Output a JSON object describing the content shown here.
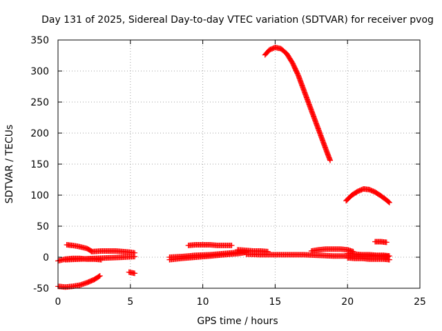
{
  "chart_data": {
    "type": "scatter",
    "title": "Day 131 of 2025, Sidereal Day-to-day VTEC variation (SDTVAR) for receiver pvog",
    "xlabel": "GPS time / hours",
    "ylabel": "SDTVAR / TECUs",
    "xlim": [
      0,
      25
    ],
    "ylim": [
      -50,
      350
    ],
    "xticks": [
      0,
      5,
      10,
      15,
      20,
      25
    ],
    "yticks": [
      -50,
      0,
      50,
      100,
      150,
      200,
      250,
      300,
      350
    ],
    "xtick_labels": [
      "0",
      "5",
      "10",
      "15",
      "20",
      "25"
    ],
    "ytick_labels": [
      "-50",
      "0",
      "50",
      "100",
      "150",
      "200",
      "250",
      "300",
      "350"
    ],
    "grid": true,
    "marker": "+",
    "color": "#ff0000",
    "series": [
      {
        "name": "seg-01",
        "x": [
          0.0,
          0.5,
          1.0,
          1.5,
          2.0,
          2.5,
          2.9
        ],
        "y": [
          -47,
          -48,
          -47,
          -45,
          -41,
          -36,
          -30
        ]
      },
      {
        "name": "seg-02",
        "x": [
          0.0,
          0.5,
          1.0,
          1.5,
          2.0,
          2.5,
          3.0
        ],
        "y": [
          -6,
          -3,
          -2,
          -2,
          -3,
          -3,
          -4
        ]
      },
      {
        "name": "seg-03",
        "x": [
          0.6,
          1.0,
          1.5,
          2.0,
          2.3
        ],
        "y": [
          20,
          19,
          17,
          14,
          10
        ]
      },
      {
        "name": "seg-04",
        "x": [
          2.3,
          3.0,
          3.5,
          4.0,
          4.5,
          5.0,
          5.3
        ],
        "y": [
          9,
          10,
          10,
          10,
          9,
          8,
          7
        ]
      },
      {
        "name": "seg-05",
        "x": [
          0.5,
          1.5,
          2.5,
          3.5,
          4.5,
          5.3
        ],
        "y": [
          -4,
          -3,
          -2,
          -1,
          0,
          1
        ]
      },
      {
        "name": "seg-06",
        "x": [
          4.9,
          5.1,
          5.3
        ],
        "y": [
          -24,
          -25,
          -26
        ]
      },
      {
        "name": "seg-07",
        "x": [
          7.7,
          8.5,
          9.5,
          10.5,
          11.5,
          12.5,
          13.0
        ],
        "y": [
          0,
          1,
          3,
          4,
          6,
          8,
          9
        ]
      },
      {
        "name": "seg-08",
        "x": [
          7.7,
          8.5,
          9.5,
          10.5,
          11.5,
          12.5,
          13.0
        ],
        "y": [
          -4,
          -2,
          0,
          2,
          4,
          6,
          8
        ]
      },
      {
        "name": "seg-09",
        "x": [
          9.0,
          9.5,
          10.0,
          10.5,
          11.0,
          11.5,
          12.0
        ],
        "y": [
          19,
          20,
          20,
          20,
          19,
          19,
          19
        ]
      },
      {
        "name": "seg-10",
        "x": [
          12.4,
          13.0,
          13.5,
          14.0,
          14.5
        ],
        "y": [
          12,
          11,
          10,
          10,
          9
        ]
      },
      {
        "name": "seg-11",
        "x": [
          13.0,
          14.0,
          15.0,
          16.0,
          17.0,
          18.0,
          19.0,
          20.0,
          21.0,
          22.0,
          22.8
        ],
        "y": [
          5,
          4,
          4,
          4,
          4,
          3,
          2,
          2,
          2,
          2,
          1
        ]
      },
      {
        "name": "seg-12",
        "x": [
          14.3,
          14.6,
          15.0,
          15.4,
          15.8,
          16.2,
          16.6,
          17.0,
          17.4,
          17.8,
          18.2,
          18.6,
          18.8
        ],
        "y": [
          326,
          334,
          338,
          336,
          328,
          313,
          293,
          268,
          243,
          218,
          193,
          168,
          156
        ]
      },
      {
        "name": "seg-13",
        "x": [
          17.5,
          18.0,
          18.5,
          19.0,
          19.5,
          20.0,
          20.4
        ],
        "y": [
          10,
          12,
          13,
          13,
          13,
          12,
          9
        ]
      },
      {
        "name": "seg-14",
        "x": [
          19.9,
          20.3,
          20.7,
          21.1,
          21.5,
          21.9,
          22.3,
          22.7,
          22.9
        ],
        "y": [
          91,
          100,
          106,
          110,
          109,
          105,
          99,
          92,
          88
        ]
      },
      {
        "name": "seg-15",
        "x": [
          20.0,
          20.5,
          21.0,
          21.5,
          22.0,
          22.5,
          22.9
        ],
        "y": [
          6,
          5,
          4,
          4,
          3,
          3,
          2
        ]
      },
      {
        "name": "seg-16",
        "x": [
          20.0,
          20.5,
          21.0,
          21.5,
          22.0,
          22.5,
          22.9
        ],
        "y": [
          -1,
          -2,
          -2,
          -3,
          -3,
          -3,
          -4
        ]
      },
      {
        "name": "seg-17",
        "x": [
          21.9,
          22.3,
          22.7
        ],
        "y": [
          25,
          25,
          24
        ]
      }
    ]
  }
}
